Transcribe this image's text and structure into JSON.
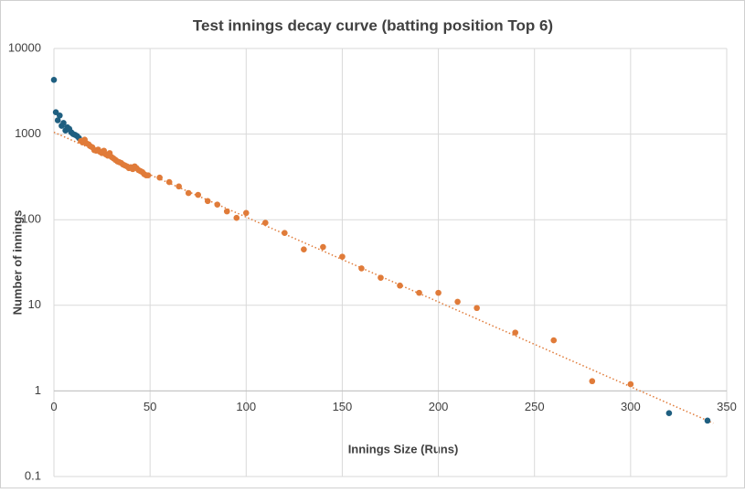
{
  "chart_data": {
    "type": "scatter",
    "title": "Test innings decay curve (batting position Top 6)",
    "x_label": "Innings Size (Runs)",
    "y_label": "Number of innings",
    "y_scale": "log",
    "grid": true,
    "x_axis_crosses": 1,
    "xlim": [
      0,
      350
    ],
    "xticks": [
      0,
      50,
      100,
      150,
      200,
      250,
      300,
      350
    ],
    "ylim": [
      0.1,
      10000
    ],
    "yticks": [
      0.1,
      1,
      10,
      100,
      1000,
      10000
    ],
    "series": [
      {
        "color": "#1f5f80",
        "x": [
          0,
          1,
          2,
          3,
          4,
          5,
          6,
          7,
          8,
          9,
          10,
          11,
          12,
          13,
          320,
          340
        ],
        "values": [
          4300,
          1800,
          1450,
          1650,
          1250,
          1350,
          1100,
          1200,
          1150,
          1050,
          1000,
          980,
          950,
          900,
          0.55,
          0.45
        ]
      },
      {
        "color": "#e07b39",
        "x": [
          14,
          15,
          16,
          17,
          18,
          19,
          20,
          21,
          22,
          23,
          24,
          25,
          26,
          27,
          28,
          29,
          30,
          31,
          32,
          33,
          34,
          35,
          36,
          37,
          38,
          39,
          40,
          41,
          42,
          43,
          44,
          45,
          46,
          47,
          48,
          49,
          55,
          60,
          65,
          70,
          75,
          80,
          85,
          90,
          95,
          100,
          110,
          120,
          130,
          140,
          150,
          160,
          170,
          180,
          190,
          200,
          210,
          220,
          240,
          260,
          280,
          300
        ],
        "values": [
          830,
          800,
          860,
          780,
          760,
          720,
          700,
          650,
          640,
          660,
          620,
          600,
          640,
          580,
          560,
          600,
          540,
          520,
          500,
          480,
          470,
          460,
          440,
          430,
          420,
          400,
          410,
          390,
          420,
          400,
          380,
          370,
          360,
          340,
          330,
          330,
          310,
          275,
          245,
          205,
          195,
          165,
          150,
          125,
          105,
          120,
          92,
          70,
          45,
          48,
          37,
          27,
          21,
          17,
          14,
          14,
          11,
          9.3,
          4.8,
          3.9,
          1.3,
          1.2
        ]
      }
    ],
    "trendline": {
      "color": "#e07b39",
      "x": [
        0,
        343
      ],
      "values": [
        1050,
        0.42
      ]
    }
  }
}
